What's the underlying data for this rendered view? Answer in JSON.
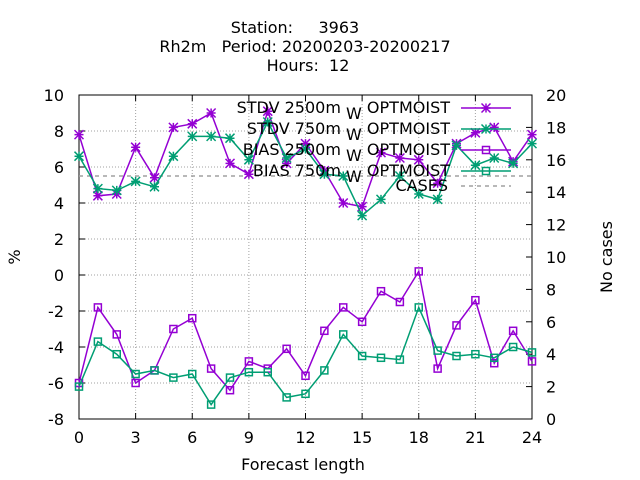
{
  "header": {
    "line1": "Station:     3963",
    "line2": "Rh2m   Period: 20200203-20200217",
    "line3": "Hours:  12"
  },
  "colors": {
    "purple": "#9400D3",
    "green": "#009E73",
    "cases": "#A0A0A0",
    "grid": "#A0A0A0",
    "axis": "#000000"
  },
  "chart_data": {
    "type": "line",
    "xlabel": "Forecast length",
    "ylabel": "%",
    "y2label": "No cases",
    "xlim": [
      0,
      24
    ],
    "ylim": [
      -8,
      10
    ],
    "y2lim": [
      0,
      20
    ],
    "xticks": [
      0,
      3,
      6,
      9,
      12,
      15,
      18,
      21,
      24
    ],
    "yticks": [
      -8,
      -6,
      -4,
      -2,
      0,
      2,
      4,
      6,
      8,
      10
    ],
    "y2ticks": [
      0,
      2,
      4,
      6,
      8,
      10,
      12,
      14,
      16,
      18,
      20
    ],
    "grid": true,
    "legend_position": "top-right",
    "x": [
      0,
      1,
      2,
      3,
      4,
      5,
      6,
      7,
      8,
      9,
      10,
      11,
      12,
      13,
      14,
      15,
      16,
      17,
      18,
      19,
      20,
      21,
      22,
      23,
      24
    ],
    "series": [
      {
        "name": "STDV 2500m",
        "name_sub": "W",
        "name_suffix": "OPTMOIST",
        "axis": "y",
        "color": "purple",
        "marker": "star",
        "dash": "solid",
        "values": [
          7.8,
          4.4,
          4.5,
          7.1,
          5.4,
          8.2,
          8.4,
          9.0,
          6.2,
          5.6,
          9.1,
          6.2,
          7.3,
          5.8,
          4.0,
          3.8,
          6.8,
          6.5,
          6.4,
          5.1,
          7.3,
          7.9,
          8.2,
          6.3,
          7.8
        ]
      },
      {
        "name": "STDV 750m",
        "name_sub": "W",
        "name_suffix": "OPTMOIST",
        "axis": "y",
        "color": "green",
        "marker": "star",
        "dash": "solid",
        "values": [
          6.6,
          4.8,
          4.7,
          5.2,
          4.9,
          6.6,
          7.7,
          7.7,
          7.6,
          6.4,
          8.5,
          6.5,
          7.0,
          5.6,
          5.5,
          3.3,
          4.2,
          5.5,
          4.5,
          4.2,
          7.2,
          6.1,
          6.5,
          6.2,
          7.3
        ]
      },
      {
        "name": "BIAS 2500m",
        "name_sub": "W",
        "name_suffix": "OPTMOIST",
        "axis": "y",
        "color": "purple",
        "marker": "square",
        "dash": "solid",
        "values": [
          -6.0,
          -1.8,
          -3.3,
          -6.0,
          -5.3,
          -3.0,
          -2.4,
          -5.2,
          -6.4,
          -4.8,
          -5.2,
          -4.1,
          -5.6,
          -3.1,
          -1.8,
          -2.6,
          -0.9,
          -1.5,
          0.2,
          -5.2,
          -2.8,
          -1.4,
          -4.9,
          -3.1,
          -4.8
        ]
      },
      {
        "name": "BIAS 750m",
        "name_sub": "W",
        "name_suffix": "OPTMOIST",
        "axis": "y",
        "color": "green",
        "marker": "square",
        "dash": "solid",
        "values": [
          -6.2,
          -3.7,
          -4.4,
          -5.5,
          -5.3,
          -5.7,
          -5.5,
          -7.2,
          -5.7,
          -5.4,
          -5.4,
          -6.8,
          -6.6,
          -5.3,
          -3.3,
          -4.5,
          -4.6,
          -4.7,
          -1.8,
          -4.2,
          -4.5,
          -4.4,
          -4.6,
          -4.0,
          -4.3
        ]
      },
      {
        "name": "CASES",
        "axis": "y2",
        "color": "cases",
        "marker": "none",
        "dash": "dashed",
        "values": [
          15,
          15,
          15,
          15,
          15,
          15,
          15,
          15,
          15,
          15,
          15,
          15,
          15,
          15,
          15,
          15,
          15,
          15,
          15,
          15,
          15,
          15,
          15,
          15,
          15
        ]
      }
    ]
  }
}
